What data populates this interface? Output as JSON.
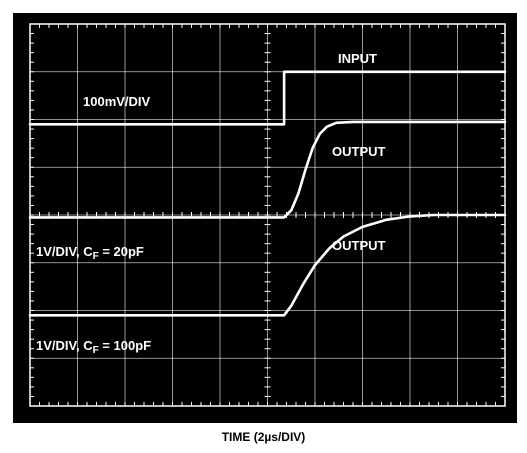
{
  "chart_data": {
    "type": "line",
    "title": "",
    "xlabel": "TIME (2µs/DIV)",
    "ylabel": "",
    "grid": true,
    "divisions": {
      "x": 10,
      "y": 8
    },
    "colors": {
      "screen": "#000000",
      "trace": "#ffffff",
      "grid": "#ffffff"
    },
    "series": [
      {
        "name": "INPUT",
        "scale": "100mV/DIV",
        "points": [
          [
            0,
            1.95
          ],
          [
            5.35,
            1.95
          ],
          [
            5.35,
            3.05
          ],
          [
            10,
            3.05
          ]
        ]
      },
      {
        "name": "OUTPUT",
        "scale": "1V/DIV, C_F = 20pF",
        "points": [
          [
            0,
            2.0
          ],
          [
            5.35,
            2.0
          ],
          [
            5.5,
            2.15
          ],
          [
            5.65,
            2.5
          ],
          [
            5.8,
            3.0
          ],
          [
            5.95,
            3.45
          ],
          [
            6.1,
            3.75
          ],
          [
            6.25,
            3.9
          ],
          [
            6.45,
            3.98
          ],
          [
            6.8,
            4.0
          ],
          [
            10,
            4.0
          ]
        ]
      },
      {
        "name": "OUTPUT",
        "scale": "1V/DIV, C_F = 100pF",
        "points": [
          [
            0,
            1.9
          ],
          [
            5.35,
            1.9
          ],
          [
            5.5,
            2.1
          ],
          [
            5.75,
            2.55
          ],
          [
            6.0,
            2.95
          ],
          [
            6.3,
            3.3
          ],
          [
            6.6,
            3.55
          ],
          [
            7.0,
            3.75
          ],
          [
            7.5,
            3.9
          ],
          [
            8.0,
            3.97
          ],
          [
            8.5,
            4.0
          ],
          [
            10,
            4.0
          ]
        ]
      }
    ],
    "annotations": {
      "input": "INPUT",
      "input_scale": "100mV/DIV",
      "output1": "OUTPUT",
      "output1_scale_prefix": "1V/DIV, C",
      "output1_scale_sub": "F",
      "output1_scale_suffix": " = 20pF",
      "output2": "OUTPUT",
      "output2_scale_prefix": "1V/DIV, C",
      "output2_scale_sub": "F",
      "output2_scale_suffix": " = 100pF"
    }
  }
}
